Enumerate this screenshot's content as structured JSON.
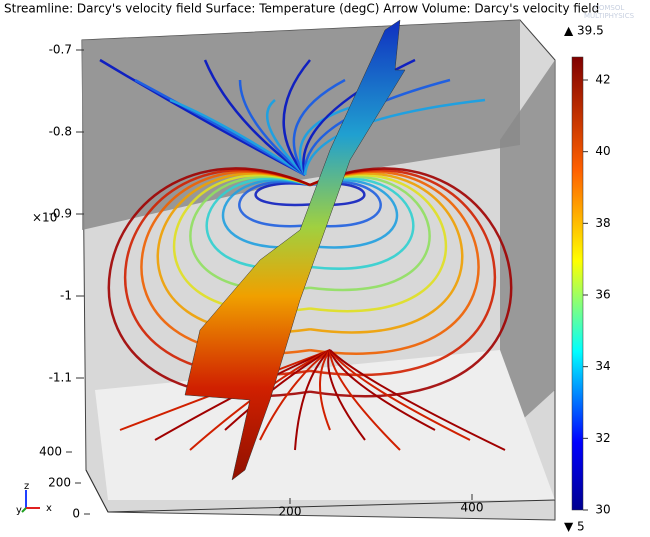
{
  "title": "Streamline: Darcy's velocity field  Surface: Temperature (degC)  Arrow Volume: Darcy's velocity field",
  "watermark": [
    "COMSOL",
    "MULTIPHYSICS"
  ],
  "axes": {
    "z_ticks": [
      -0.7,
      -0.8,
      -0.9,
      -1,
      -1.1
    ],
    "z_multiplier": "×10",
    "y_ticks": [
      400,
      200,
      0
    ],
    "x_ticks": [
      200,
      400
    ],
    "triad": [
      "z",
      "y",
      "x"
    ]
  },
  "colorbar": {
    "ticks": [
      42,
      40,
      38,
      36,
      34,
      32,
      30
    ],
    "max_label": "▲ 39.5",
    "min_label": "▼ 5"
  }
}
